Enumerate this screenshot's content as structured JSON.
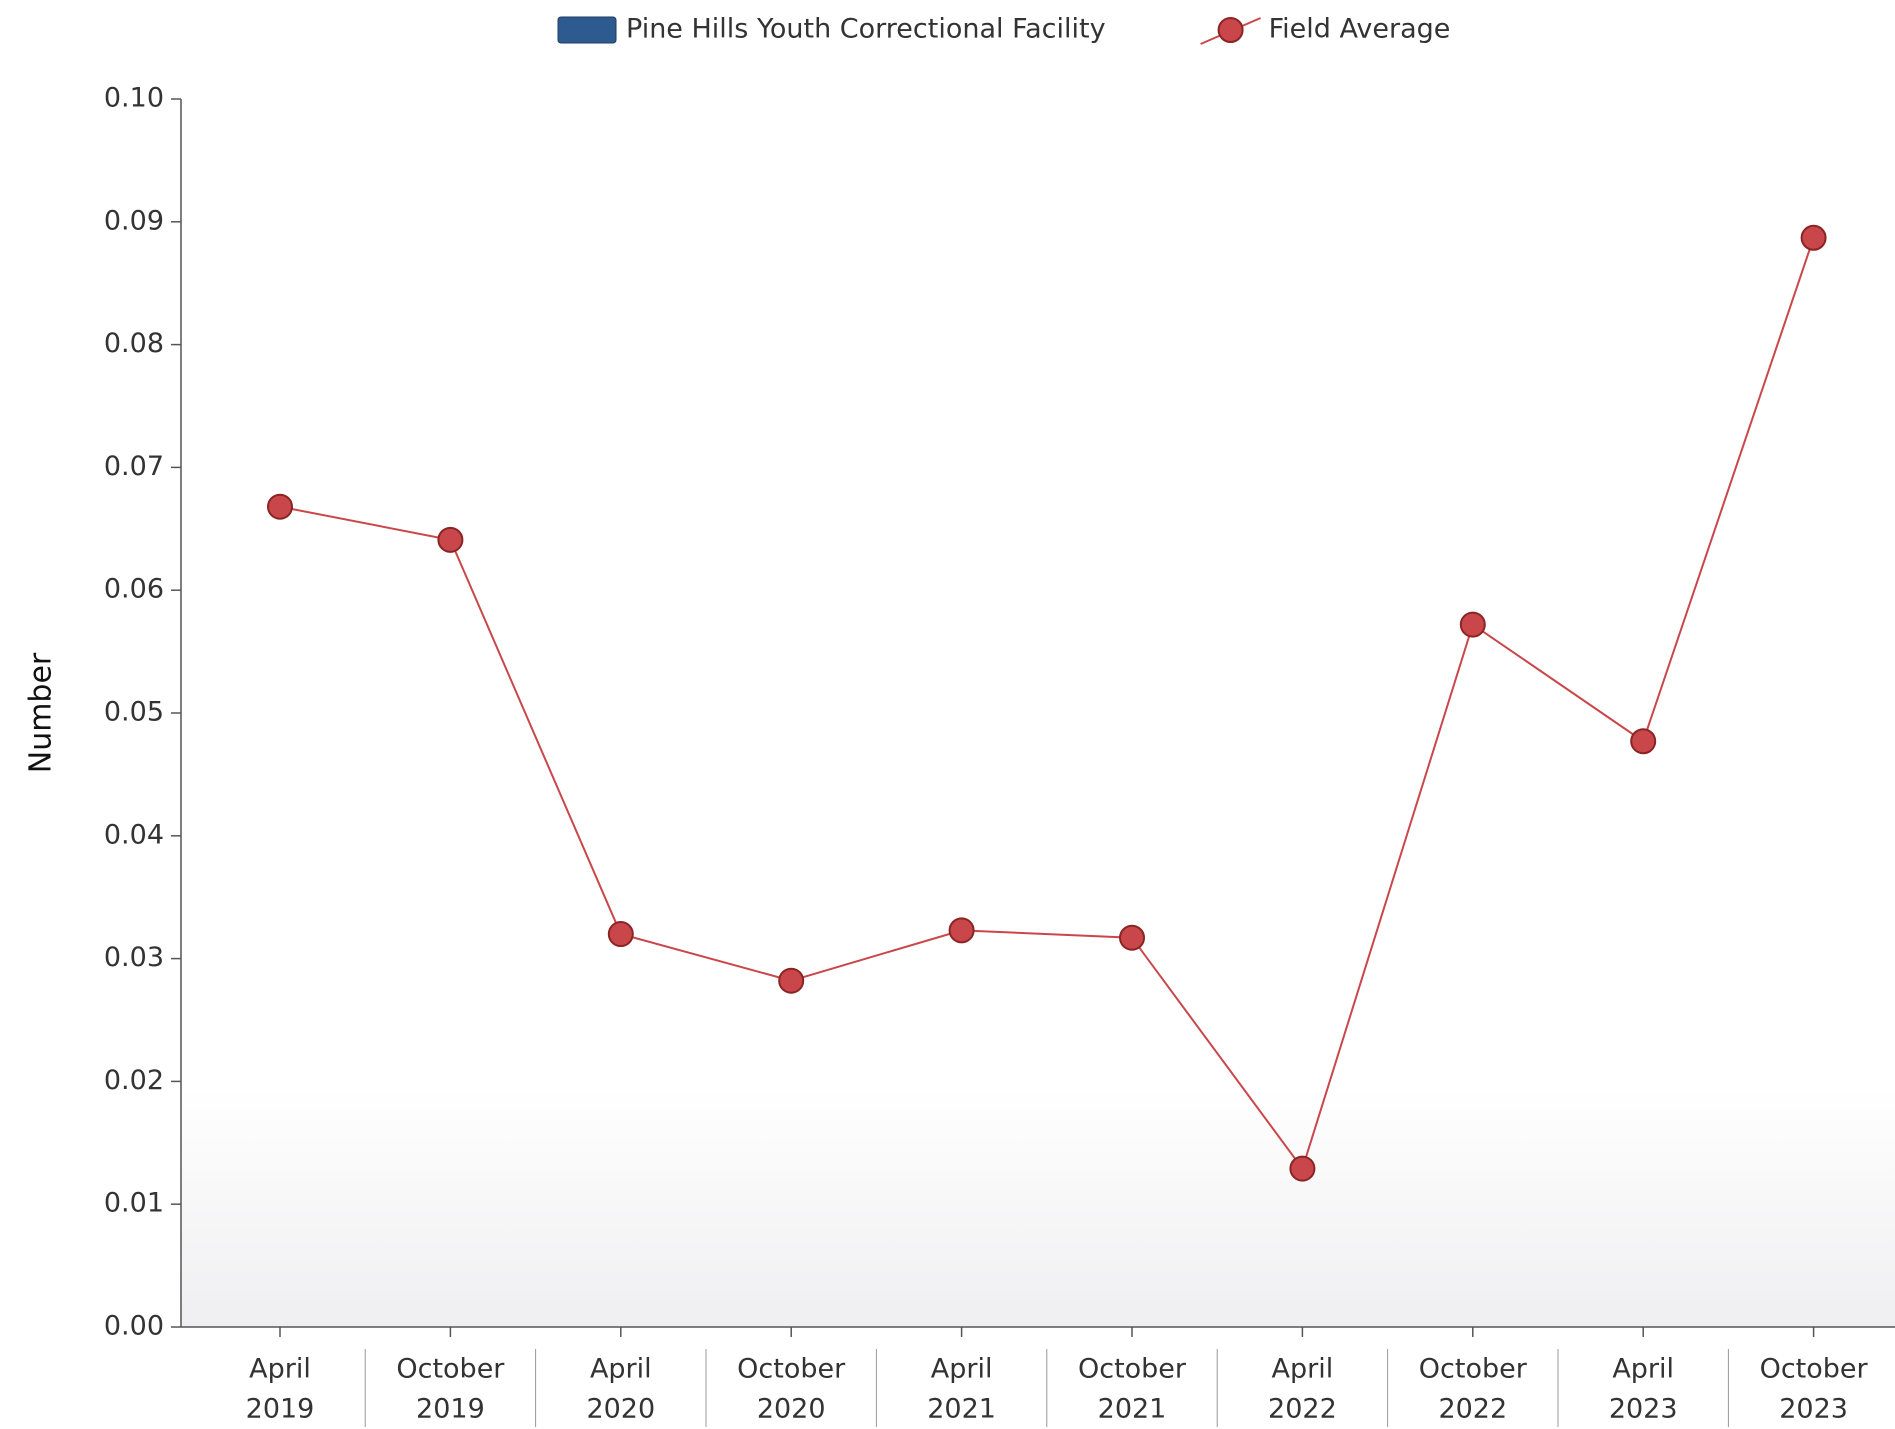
{
  "chart_data": {
    "type": "line",
    "y_label": "Number",
    "categories": [
      [
        "April",
        "2019"
      ],
      [
        "October",
        "2019"
      ],
      [
        "April",
        "2020"
      ],
      [
        "October",
        "2020"
      ],
      [
        "April",
        "2021"
      ],
      [
        "October",
        "2021"
      ],
      [
        "April",
        "2022"
      ],
      [
        "October",
        "2022"
      ],
      [
        "April",
        "2023"
      ],
      [
        "October",
        "2023"
      ]
    ],
    "series": [
      {
        "name": "Pine Hills Youth Correctional Facility",
        "type": "bar",
        "color": "#2e5b8f",
        "values": [
          null,
          null,
          null,
          null,
          null,
          null,
          null,
          null,
          null,
          null
        ]
      },
      {
        "name": "Field Average",
        "type": "line",
        "color": "#c9474a",
        "values": [
          0.0668,
          0.0641,
          0.032,
          0.0282,
          0.0323,
          0.0317,
          0.0129,
          0.0572,
          0.0477,
          0.0887
        ]
      }
    ],
    "ylim": [
      0,
      0.1
    ],
    "yticks": [
      {
        "value": 0,
        "label": "0.00"
      },
      {
        "value": 0.01,
        "label": "0.01"
      },
      {
        "value": 0.02,
        "label": "0.02"
      },
      {
        "value": 0.03,
        "label": "0.03"
      },
      {
        "value": 0.04,
        "label": "0.04"
      },
      {
        "value": 0.05,
        "label": "0.05"
      },
      {
        "value": 0.06,
        "label": "0.06"
      },
      {
        "value": 0.07,
        "label": "0.07"
      },
      {
        "value": 0.08,
        "label": "0.08"
      },
      {
        "value": 0.09,
        "label": "0.09"
      },
      {
        "value": 0.1,
        "label": "0.10"
      }
    ],
    "legend": "top"
  }
}
